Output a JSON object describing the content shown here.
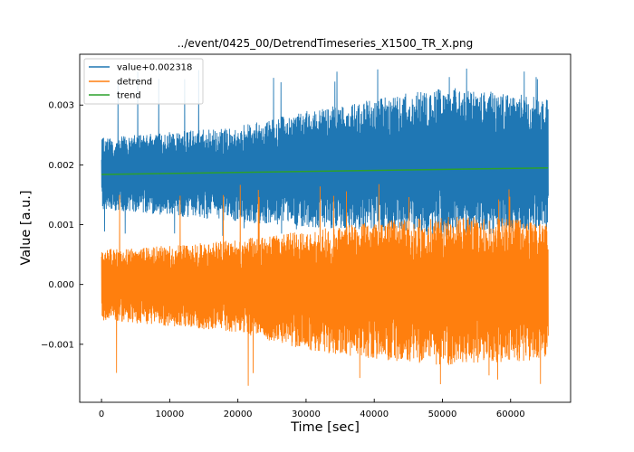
{
  "chart_data": {
    "type": "line",
    "title": "../event/0425_00/DetrendTimeseries_X1500_TR_X.png",
    "xlabel": "Time [sec]",
    "ylabel": "Value [a.u.]",
    "xlim": [
      -3200,
      68800
    ],
    "ylim": [
      -0.00197,
      0.00385
    ],
    "xticks": [
      0,
      10000,
      20000,
      30000,
      40000,
      50000,
      60000
    ],
    "xtick_labels": [
      "0",
      "10000",
      "20000",
      "30000",
      "40000",
      "50000",
      "60000"
    ],
    "yticks": [
      -0.001,
      0.0,
      0.001,
      0.002,
      0.003
    ],
    "ytick_labels": [
      "−0.001",
      "0.000",
      "0.001",
      "0.002",
      "0.003"
    ],
    "grid": false,
    "legend_position": "top-left",
    "series": [
      {
        "name": "value+0.002318",
        "color": "#1f77b4",
        "style": "noise-band",
        "x": [
          0,
          10000,
          20000,
          30000,
          40000,
          50000,
          60000,
          65500
        ],
        "upper": [
          0.00245,
          0.00255,
          0.00265,
          0.0029,
          0.0031,
          0.0033,
          0.0032,
          0.0031
        ],
        "lower": [
          0.00125,
          0.00115,
          0.00105,
          0.00095,
          0.0009,
          0.0008,
          0.00085,
          0.0009
        ],
        "peak_max": 0.00362,
        "peak_min": 0.0008
      },
      {
        "name": "detrend",
        "color": "#ff7f0e",
        "style": "noise-band",
        "x": [
          0,
          10000,
          20000,
          30000,
          40000,
          50000,
          60000,
          65500
        ],
        "upper": [
          0.0006,
          0.00065,
          0.00075,
          0.0009,
          0.00105,
          0.00115,
          0.0011,
          0.00105
        ],
        "lower": [
          -0.0006,
          -0.0007,
          -0.0008,
          -0.0011,
          -0.00125,
          -0.00135,
          -0.0013,
          -0.00125
        ],
        "peak_max": 0.00168,
        "peak_min": -0.00172
      },
      {
        "name": "trend",
        "color": "#2ca02c",
        "style": "line",
        "x": [
          0,
          65500
        ],
        "y": [
          0.00184,
          0.00195
        ]
      }
    ]
  }
}
